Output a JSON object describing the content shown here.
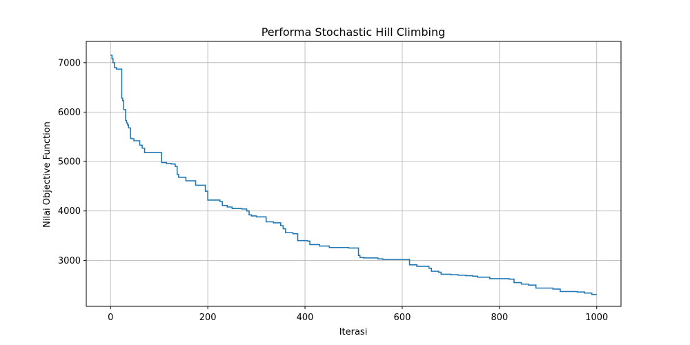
{
  "chart_data": {
    "type": "line",
    "title": "Performa Stochastic Hill Climbing",
    "xlabel": "Iterasi",
    "ylabel": "Nilai Objective Function",
    "xlim": [
      -50,
      1050
    ],
    "ylim": [
      2070,
      7430
    ],
    "xticks": [
      0,
      200,
      400,
      600,
      800,
      1000
    ],
    "xtick_labels": [
      "0",
      "200",
      "400",
      "600",
      "800",
      "1000"
    ],
    "yticks": [
      3000,
      4000,
      5000,
      6000,
      7000
    ],
    "ytick_labels": [
      "3000",
      "4000",
      "5000",
      "6000",
      "7000"
    ],
    "grid": true,
    "line_color": "#1f77b4",
    "series": [
      {
        "step": true,
        "x": [
          0,
          3,
          5,
          8,
          12,
          23,
          25,
          27,
          31,
          33,
          35,
          37,
          41,
          44,
          48,
          60,
          65,
          70,
          75,
          105,
          115,
          125,
          133,
          137,
          140,
          155,
          175,
          195,
          200,
          225,
          230,
          240,
          250,
          270,
          280,
          285,
          290,
          300,
          320,
          335,
          350,
          355,
          360,
          375,
          385,
          405,
          410,
          430,
          450,
          490,
          510,
          513,
          520,
          550,
          560,
          587,
          615,
          630,
          655,
          660,
          675,
          680,
          700,
          715,
          730,
          745,
          755,
          780,
          820,
          830,
          845,
          860,
          875,
          910,
          925,
          960,
          975,
          990,
          1000
        ],
        "y": [
          7150,
          7080,
          7000,
          6900,
          6870,
          6280,
          6230,
          6050,
          5830,
          5780,
          5740,
          5680,
          5470,
          5460,
          5420,
          5330,
          5270,
          5180,
          5180,
          4980,
          4960,
          4950,
          4900,
          4740,
          4680,
          4610,
          4520,
          4400,
          4220,
          4190,
          4110,
          4080,
          4050,
          4040,
          4000,
          3920,
          3900,
          3880,
          3780,
          3760,
          3700,
          3640,
          3560,
          3540,
          3400,
          3390,
          3320,
          3290,
          3260,
          3250,
          3100,
          3060,
          3050,
          3030,
          3020,
          3020,
          2910,
          2880,
          2840,
          2780,
          2760,
          2720,
          2710,
          2700,
          2690,
          2680,
          2660,
          2630,
          2620,
          2550,
          2520,
          2500,
          2440,
          2420,
          2370,
          2360,
          2340,
          2310,
          2310
        ]
      }
    ]
  }
}
